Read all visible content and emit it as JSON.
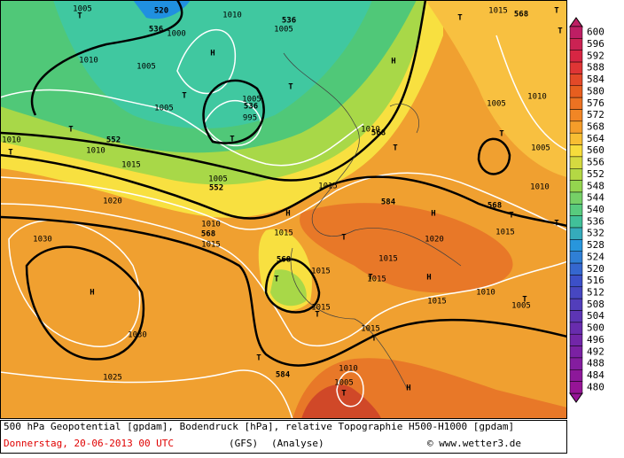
{
  "map": {
    "labels": [
      "520",
      "536",
      "1000",
      "1010",
      "1005",
      "T",
      "536",
      "1005",
      "H",
      "1010",
      "1005",
      "T",
      "1005",
      "536",
      "1005",
      "995",
      "T",
      "T",
      "T",
      "552",
      "1010",
      "T",
      "1010",
      "1015",
      "1005",
      "552",
      "1015",
      "1020",
      "1010",
      "568",
      "1015",
      "H",
      "1015",
      "568",
      "T",
      "1015",
      "T",
      "1015",
      "T",
      "1015",
      "1015",
      "T",
      "H",
      "1020",
      "1015",
      "1010",
      "1005",
      "T",
      "1015",
      "T",
      "T",
      "584",
      "1010",
      "1005",
      "T",
      "H",
      "1030",
      "H",
      "1030",
      "1025",
      "1010",
      "568",
      "T",
      "H",
      "584",
      "H",
      "568",
      "T",
      "1015",
      "T",
      "T",
      "1005",
      "1010",
      "1005",
      "1010",
      "1015",
      "568",
      "T",
      "T",
      "T"
    ],
    "colorbar": [
      600,
      596,
      592,
      588,
      584,
      580,
      576,
      572,
      568,
      564,
      560,
      556,
      552,
      548,
      544,
      540,
      536,
      532,
      528,
      524,
      520,
      516,
      512,
      508,
      504,
      500,
      496,
      492,
      488,
      484,
      480
    ]
  },
  "caption": {
    "line1": "500 hPa Geopotential [gpdam], Bodendruck [hPa], relative Topographie H500-H1000 [gpdam]",
    "date": "Donnerstag, 20-06-2013  00 UTC",
    "model": "(GFS)",
    "run": "(Analyse)",
    "credit": "© www.wetter3.de"
  }
}
